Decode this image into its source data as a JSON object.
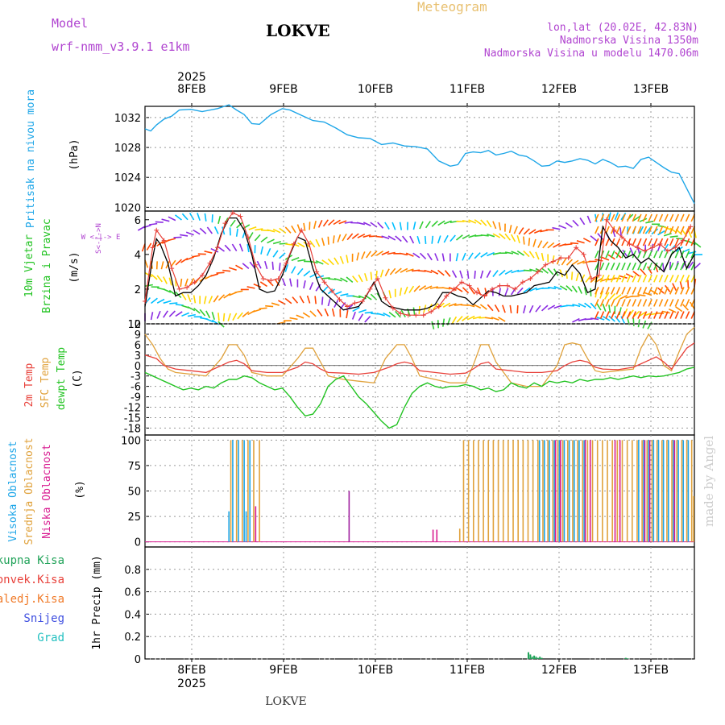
{
  "header": {
    "model_label": "Model",
    "model_name": "wrf-nmm_v3.9.1  e1km",
    "station": "LOKVE",
    "meteogram_label": "Meteogram",
    "lonlat": "lon,lat (20.02E, 42.83N)",
    "elevation": "Nadmorska Visina 1350m",
    "model_elevation": "Nadmorska Visina u modelu 1470.06m",
    "year_top": "2025",
    "year_bottom": "2025",
    "footer_station": "LOKVE",
    "watermark": "made by Angel"
  },
  "colors": {
    "pressure": "#1ea6e8",
    "t2m": "#e8413a",
    "sfc": "#e0a23c",
    "dewpt": "#22c322",
    "wind_speed": "#000000",
    "wind_gust": "#e8413a",
    "high_cloud": "#1ea6e8",
    "mid_cloud": "#e0a23c",
    "low_cloud": "#d81b90",
    "precip_total": "#22a35a",
    "precip_conv": "#e8413a",
    "precip_frz": "#f07a28",
    "precip_snow": "#4050e0",
    "precip_grad": "#23c0c0",
    "purple_text": "#b044d0"
  },
  "panels": {
    "pressure": {
      "ylabel": "Pritisak na nivou mora",
      "unit": "(hPa)"
    },
    "wind": {
      "ylabel1": "10m Vjetar",
      "ylabel2": "Brzina i Pravac",
      "unit": "(m/s)",
      "compass": "W <-|-> E",
      "compass_ns": "S<-|->N"
    },
    "temp": {
      "ylabel1": "2m Temp",
      "ylabel2": "SFC Temp",
      "ylabel3": "dewpt Temp",
      "unit": "(C)"
    },
    "cloud": {
      "ylabel1": "Visoka Oblacnost",
      "ylabel2": "Srednja Oblacnost",
      "ylabel3": "Niska Oblacnost",
      "unit": "(%)"
    },
    "precip": {
      "ylabel": "1hr Precip (mm)",
      "legend": [
        "Ukupna Kisa",
        "Konvek.Kisa",
        "Zaledj.Kisa",
        "Snijeg",
        "Grad"
      ]
    }
  },
  "chart_data": [
    {
      "type": "line",
      "name": "pressure",
      "x_unit": "hours",
      "x_range": [
        0,
        144
      ],
      "ylim": [
        1019.5,
        1033.5
      ],
      "yticks": [
        "1020",
        "1024",
        "1028",
        "1032"
      ],
      "x_ticks": [
        "8FEB",
        "9FEB",
        "10FEB",
        "11FEB",
        "12FEB",
        "13FEB"
      ],
      "x": [
        0,
        1.5,
        3,
        5,
        7,
        9,
        12,
        15,
        19,
        22,
        24,
        26,
        28,
        30,
        33,
        36,
        38,
        41,
        44,
        47,
        50,
        53,
        56,
        59,
        62,
        65,
        68,
        71,
        74,
        77,
        80,
        82,
        84,
        86,
        88,
        90,
        92,
        94,
        96,
        98,
        100,
        102,
        104,
        106,
        108,
        110,
        112,
        114,
        116,
        118,
        120,
        122,
        124,
        126,
        128,
        130,
        132,
        134,
        136,
        138,
        140,
        142,
        144
      ],
      "values": [
        1030.5,
        1030.2,
        1031.0,
        1031.8,
        1032.2,
        1033.0,
        1033.1,
        1032.8,
        1033.2,
        1033.7,
        1033.0,
        1032.4,
        1031.2,
        1031.1,
        1032.4,
        1033.2,
        1033.0,
        1032.3,
        1031.6,
        1031.4,
        1030.6,
        1029.7,
        1029.3,
        1029.2,
        1028.4,
        1028.6,
        1028.2,
        1028.1,
        1027.8,
        1026.2,
        1025.5,
        1025.7,
        1027.2,
        1027.4,
        1027.3,
        1027.6,
        1027.0,
        1027.2,
        1027.5,
        1027.0,
        1026.8,
        1026.2,
        1025.5,
        1025.6,
        1026.2,
        1026.0,
        1026.2,
        1026.5,
        1026.3,
        1025.8,
        1026.4,
        1026.0,
        1025.4,
        1025.5,
        1025.2,
        1026.4,
        1026.7,
        1026.0,
        1025.3,
        1024.7,
        1024.5,
        1022.5,
        1020.5
      ]
    },
    {
      "type": "line",
      "name": "wind",
      "x_unit": "hours",
      "x_range": [
        0,
        144
      ],
      "ylim": [
        0,
        6.5
      ],
      "yticks": [
        "0",
        "2",
        "4",
        "6"
      ],
      "series": [
        {
          "key": "speed",
          "x": [
            0,
            2,
            3,
            4,
            6,
            8,
            10,
            12,
            14,
            16,
            18,
            20,
            22,
            24,
            26,
            28,
            30,
            32,
            34,
            36,
            38,
            40,
            42,
            44,
            46,
            48,
            50,
            52,
            54,
            56,
            58,
            60,
            62,
            64,
            66,
            68,
            70,
            72,
            74,
            76,
            78,
            80,
            82,
            84,
            86,
            88,
            90,
            92,
            94,
            96,
            98,
            100,
            102,
            104,
            106,
            108,
            110,
            112,
            114,
            116,
            118,
            120,
            122,
            124,
            126,
            128,
            130,
            132,
            134,
            136,
            138,
            140,
            142,
            144
          ],
          "values": [
            1.0,
            3.8,
            4.9,
            4.6,
            3.5,
            1.6,
            1.8,
            1.8,
            2.2,
            2.8,
            3.8,
            5.2,
            6.1,
            6.1,
            5.4,
            4.0,
            2.0,
            1.8,
            1.9,
            2.8,
            4.0,
            5.0,
            4.8,
            3.2,
            2.0,
            1.6,
            1.2,
            0.8,
            0.9,
            1.0,
            1.6,
            2.4,
            1.3,
            1.0,
            0.9,
            0.8,
            0.8,
            0.8,
            0.9,
            1.1,
            1.8,
            1.8,
            1.6,
            1.5,
            1.1,
            1.5,
            1.9,
            1.8,
            1.6,
            1.6,
            1.7,
            1.8,
            2.2,
            2.3,
            2.4,
            3.0,
            2.8,
            3.4,
            2.9,
            1.8,
            2.0,
            5.6,
            4.8,
            4.4,
            3.8,
            4.0,
            3.5,
            3.8,
            3.4,
            3.0,
            4.0,
            4.4,
            3.2,
            4.0
          ]
        },
        {
          "key": "gust",
          "x": [
            0,
            2,
            3,
            5,
            7,
            9,
            11,
            13,
            15,
            17,
            19,
            21,
            23,
            25,
            27,
            29,
            31,
            33,
            35,
            37,
            39,
            41,
            43,
            45,
            47,
            49,
            51,
            53,
            55,
            57,
            59,
            61,
            63,
            65,
            67,
            69,
            71,
            73,
            75,
            77,
            79,
            81,
            83,
            85,
            87,
            89,
            91,
            93,
            95,
            97,
            99,
            101,
            103,
            105,
            107,
            109,
            111,
            113,
            115,
            117,
            119,
            121,
            123,
            125,
            127,
            129,
            131,
            133,
            135,
            137,
            139,
            141,
            143
          ],
          "values": [
            1.3,
            4.4,
            5.4,
            4.8,
            3.2,
            2.0,
            2.1,
            2.4,
            2.8,
            3.5,
            4.4,
            5.8,
            6.4,
            6.2,
            5.0,
            3.4,
            2.6,
            2.5,
            2.6,
            3.5,
            4.6,
            5.4,
            4.6,
            3.0,
            2.4,
            1.9,
            1.4,
            1.0,
            1.2,
            1.3,
            2.0,
            2.6,
            1.5,
            0.9,
            0.6,
            0.5,
            0.5,
            0.5,
            0.7,
            1.0,
            1.6,
            2.0,
            2.4,
            2.2,
            1.8,
            1.6,
            2.0,
            2.2,
            2.2,
            2.0,
            2.4,
            2.6,
            3.0,
            3.4,
            3.6,
            3.8,
            3.8,
            4.4,
            4.0,
            2.6,
            2.8,
            6.0,
            5.4,
            5.0,
            4.6,
            4.4,
            4.2,
            4.4,
            4.6,
            4.2,
            4.4,
            4.8,
            5.6
          ]
        }
      ]
    },
    {
      "type": "line",
      "name": "temperature",
      "x_unit": "hours",
      "x_range": [
        0,
        144
      ],
      "ylim": [
        -20,
        12
      ],
      "yticks": [
        "-18",
        "-15",
        "-12",
        "-9",
        "-6",
        "-3",
        "0",
        "3",
        "6",
        "9",
        "12"
      ],
      "series": [
        {
          "key": "t2m",
          "x": [
            0,
            3,
            5,
            8,
            12,
            16,
            20,
            22,
            24,
            26,
            28,
            32,
            36,
            40,
            42,
            44,
            46,
            48,
            52,
            56,
            60,
            64,
            66,
            68,
            70,
            72,
            76,
            80,
            84,
            86,
            88,
            90,
            92,
            96,
            100,
            104,
            108,
            110,
            112,
            114,
            116,
            118,
            120,
            124,
            128,
            130,
            132,
            134,
            136,
            138,
            140,
            142,
            144
          ],
          "values": [
            3,
            2,
            0,
            -1,
            -1.5,
            -2,
            0,
            1,
            1.5,
            0.5,
            -1.5,
            -2,
            -2,
            -0.5,
            1,
            0.5,
            -1,
            -2,
            -2.2,
            -2.5,
            -2,
            -0.5,
            0.5,
            1,
            0.5,
            -1.5,
            -2,
            -2.5,
            -2.2,
            -1,
            0.5,
            1,
            -1,
            -1.5,
            -2,
            -2,
            -1.5,
            0,
            1,
            1.5,
            1,
            -0.5,
            -1,
            -1.2,
            -0.5,
            0.5,
            1.5,
            2.5,
            1,
            -1,
            2,
            5,
            6.5
          ]
        },
        {
          "key": "sfc",
          "x": [
            0,
            2,
            4,
            6,
            8,
            12,
            16,
            20,
            22,
            24,
            26,
            28,
            32,
            36,
            40,
            42,
            44,
            46,
            48,
            52,
            56,
            60,
            63,
            66,
            68,
            70,
            72,
            76,
            80,
            84,
            86,
            88,
            90,
            92,
            96,
            100,
            104,
            108,
            110,
            112,
            114,
            116,
            118,
            120,
            124,
            128,
            130,
            132,
            134,
            136,
            138,
            140,
            142,
            144
          ],
          "values": [
            9,
            6,
            2,
            -1,
            -2,
            -2.5,
            -3,
            2,
            6,
            6,
            3,
            -2,
            -3,
            -3,
            2,
            5,
            5,
            1,
            -3,
            -4,
            -4.5,
            -5,
            2,
            6,
            6,
            2,
            -3,
            -4,
            -5,
            -5,
            0,
            6,
            6,
            1,
            -5,
            -6,
            -6,
            0,
            6,
            6.5,
            6,
            2,
            -1.5,
            -2,
            -1.5,
            -1,
            5,
            9,
            6,
            0,
            -1.5,
            4,
            9,
            11
          ]
        },
        {
          "key": "dewpt",
          "x": [
            0,
            2,
            4,
            6,
            8,
            10,
            12,
            14,
            16,
            18,
            20,
            22,
            24,
            26,
            28,
            30,
            32,
            34,
            36,
            38,
            40,
            42,
            44,
            46,
            48,
            50,
            52,
            54,
            56,
            58,
            60,
            62,
            64,
            66,
            68,
            70,
            72,
            74,
            76,
            78,
            80,
            82,
            84,
            86,
            88,
            90,
            92,
            94,
            96,
            98,
            100,
            102,
            104,
            106,
            108,
            110,
            112,
            114,
            116,
            118,
            120,
            122,
            124,
            126,
            128,
            130,
            132,
            134,
            136,
            138,
            140,
            142,
            144
          ],
          "values": [
            -2,
            -3,
            -4,
            -5,
            -6,
            -7,
            -6.5,
            -7,
            -6,
            -6.5,
            -5,
            -4,
            -4,
            -3,
            -3.5,
            -5,
            -6,
            -7,
            -6.5,
            -9,
            -12,
            -14.5,
            -14,
            -11,
            -6,
            -4,
            -3,
            -6,
            -9,
            -11,
            -13.5,
            -16,
            -18,
            -17,
            -12,
            -8,
            -6,
            -5,
            -6,
            -6.5,
            -6,
            -6,
            -5.5,
            -6,
            -7,
            -6.5,
            -7.5,
            -7,
            -5,
            -6,
            -6.5,
            -5,
            -6,
            -4.5,
            -5,
            -4.5,
            -5,
            -4,
            -4.5,
            -4,
            -4,
            -3.5,
            -4,
            -3.5,
            -3,
            -3.5,
            -3,
            -3.2,
            -3,
            -2.5,
            -2,
            -1,
            -0.5
          ]
        }
      ]
    },
    {
      "type": "bar",
      "name": "cloud",
      "x_unit": "hours",
      "x_range": [
        0,
        144
      ],
      "ylim": [
        -5,
        105
      ],
      "yticks": [
        "0",
        "25",
        "50",
        "75",
        "100"
      ],
      "x_ticks": [
        "8FEB",
        "9FEB",
        "10FEB",
        "11FEB",
        "12FEB",
        "13FEB"
      ]
    },
    {
      "type": "bar",
      "name": "precip",
      "x_unit": "hours",
      "x_range": [
        0,
        144
      ],
      "ylim": [
        0,
        1.0
      ],
      "yticks": [
        "0",
        "0.2",
        "0.4",
        "0.6",
        "0.8"
      ],
      "series": [
        {
          "key": "total",
          "x": [
            100.5,
            101,
            101.5,
            102,
            102.5,
            103,
            103.5,
            104,
            126,
            126.5
          ],
          "values": [
            0.06,
            0.04,
            0.02,
            0.03,
            0.02,
            0.01,
            0.02,
            0.01,
            0.01,
            0.005
          ]
        }
      ],
      "x_ticks": [
        "8FEB",
        "9FEB",
        "10FEB",
        "11FEB",
        "12FEB",
        "13FEB"
      ]
    }
  ]
}
